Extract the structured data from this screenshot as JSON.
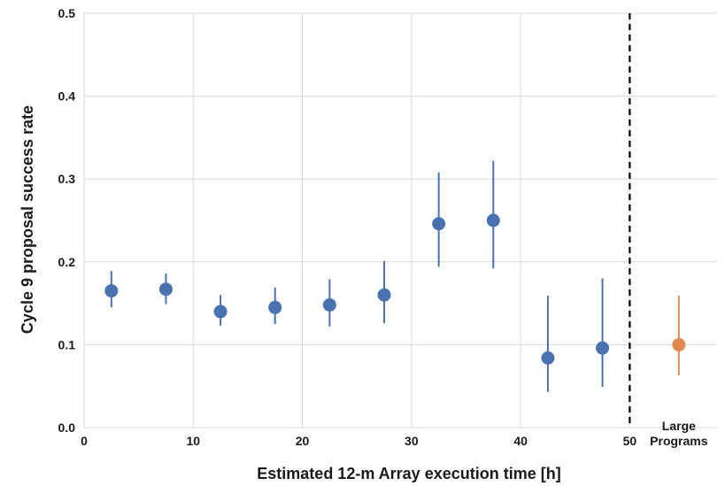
{
  "chart_data": {
    "type": "scatter",
    "title": "",
    "xlabel": "Estimated 12-m Array execution time  [h]",
    "ylabel": "Cycle 9 proposal success rate",
    "xlim": [
      0,
      58
    ],
    "ylim": [
      0,
      0.5
    ],
    "x_ticks": [
      "0",
      "10",
      "20",
      "30",
      "40",
      "50"
    ],
    "y_ticks": [
      "0.0",
      "0.1",
      "0.2",
      "0.3",
      "0.4",
      "0.5"
    ],
    "grid": true,
    "reference_line": {
      "x": 50,
      "style": "dashed",
      "color": "#000000"
    },
    "series": [
      {
        "color": "#4a72b0",
        "points": [
          {
            "x": 2.5,
            "y": 0.165,
            "low": 0.145,
            "high": 0.189
          },
          {
            "x": 7.5,
            "y": 0.167,
            "low": 0.149,
            "high": 0.186
          },
          {
            "x": 12.5,
            "y": 0.14,
            "low": 0.123,
            "high": 0.16
          },
          {
            "x": 17.5,
            "y": 0.145,
            "low": 0.125,
            "high": 0.169
          },
          {
            "x": 22.5,
            "y": 0.148,
            "low": 0.122,
            "high": 0.179
          },
          {
            "x": 27.5,
            "y": 0.16,
            "low": 0.126,
            "high": 0.201
          },
          {
            "x": 32.5,
            "y": 0.246,
            "low": 0.194,
            "high": 0.308
          },
          {
            "x": 37.5,
            "y": 0.25,
            "low": 0.192,
            "high": 0.322
          },
          {
            "x": 42.5,
            "y": 0.084,
            "low": 0.043,
            "high": 0.159
          },
          {
            "x": 47.5,
            "y": 0.096,
            "low": 0.049,
            "high": 0.18
          }
        ]
      },
      {
        "color": "#e08a4f",
        "category_label": "Large Programs",
        "points": [
          {
            "x": 54.5,
            "y": 0.1,
            "low": 0.063,
            "high": 0.159
          }
        ]
      }
    ]
  }
}
